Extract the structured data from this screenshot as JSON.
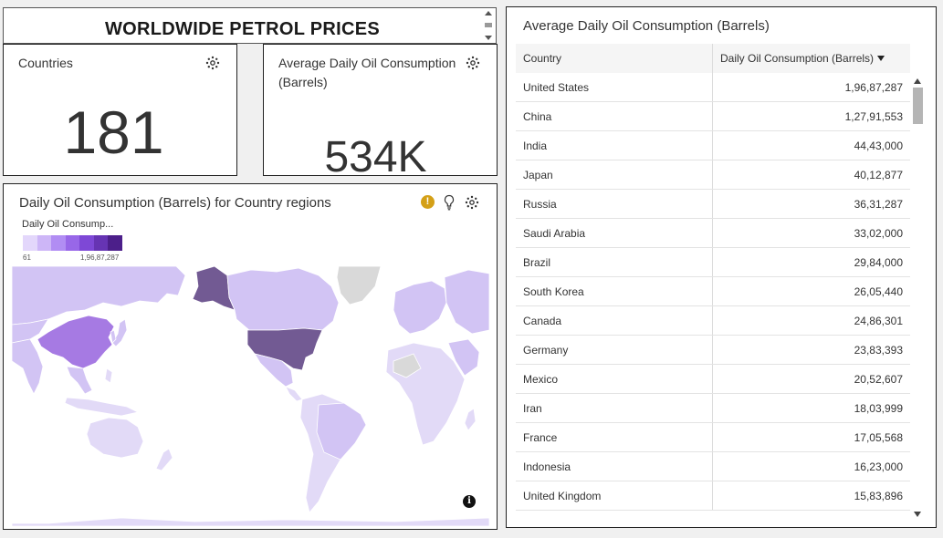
{
  "dashboard": {
    "title": "WORLDWIDE PETROL PRICES"
  },
  "kpis": {
    "countries": {
      "label": "Countries",
      "value": "181"
    },
    "consumption": {
      "label": "Average Daily Oil Consumption (Barrels)",
      "value": "534K"
    }
  },
  "map": {
    "title": "Daily Oil Consumption (Barrels) for Country regions",
    "legend_title": "Daily Oil Consump...",
    "legend_min": "61",
    "legend_max": "1,96,87,287",
    "legend_colors": [
      "#e3d7fb",
      "#cdb6f7",
      "#b18df3",
      "#9867e8",
      "#7e48d6",
      "#6634b3",
      "#4c1f8a"
    ],
    "colors": {
      "usa": "#725a93",
      "china": "#a67ae3",
      "light": "#d2c4f4",
      "lighter": "#e2daf7",
      "nodata": "#d9d9d9",
      "sea": "#ffffff"
    },
    "icons": [
      "warning-icon",
      "lightbulb-icon",
      "gear-icon",
      "info-icon"
    ]
  },
  "table": {
    "title": "Average Daily Oil Consumption (Barrels)",
    "columns": [
      "Country",
      "Daily Oil Consumption (Barrels)"
    ],
    "rows": [
      [
        "United States",
        "1,96,87,287"
      ],
      [
        "China",
        "1,27,91,553"
      ],
      [
        "India",
        "44,43,000"
      ],
      [
        "Japan",
        "40,12,877"
      ],
      [
        "Russia",
        "36,31,287"
      ],
      [
        "Saudi Arabia",
        "33,02,000"
      ],
      [
        "Brazil",
        "29,84,000"
      ],
      [
        "South Korea",
        "26,05,440"
      ],
      [
        "Canada",
        "24,86,301"
      ],
      [
        "Germany",
        "23,83,393"
      ],
      [
        "Mexico",
        "20,52,607"
      ],
      [
        "Iran",
        "18,03,999"
      ],
      [
        "France",
        "17,05,568"
      ],
      [
        "Indonesia",
        "16,23,000"
      ],
      [
        "United Kingdom",
        "15,83,896"
      ]
    ]
  }
}
